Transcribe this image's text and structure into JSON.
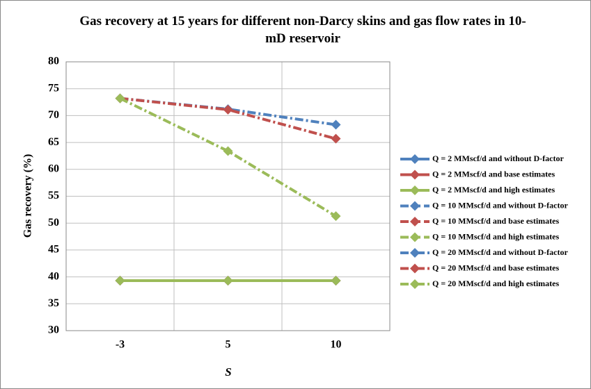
{
  "chart_data": {
    "type": "line",
    "title": "Gas recovery at 15 years for different non-Darcy skins and gas flow rates in 10-mD reservoir",
    "x_label": "S",
    "y_label": "Gas recovery (%)",
    "categories": [
      "-3",
      "5",
      "10"
    ],
    "ylim": [
      30,
      80
    ],
    "yticks": [
      30,
      35,
      40,
      45,
      50,
      55,
      60,
      65,
      70,
      75,
      80
    ],
    "grid": true,
    "legend": "right",
    "series": [
      {
        "name": "Q = 2 MMscf/d and without D-factor",
        "color": "#4f81bd",
        "dash": "solid",
        "values": [
          39.3,
          39.3,
          39.3
        ]
      },
      {
        "name": "Q = 2 MMscf/d and base estimates",
        "color": "#c0504d",
        "dash": "solid",
        "values": [
          39.3,
          39.3,
          39.3
        ]
      },
      {
        "name": "Q = 2 MMscf/d and high estimates",
        "color": "#9bbb59",
        "dash": "solid",
        "values": [
          39.3,
          39.3,
          39.3
        ]
      },
      {
        "name": "Q = 10 MMscf/d and without D-factor",
        "color": "#4f81bd",
        "dash": "dash",
        "values": [
          39.3,
          39.3,
          39.3
        ]
      },
      {
        "name": "Q = 10 MMscf/d and base estimates",
        "color": "#c0504d",
        "dash": "dash",
        "values": [
          39.3,
          39.3,
          39.3
        ]
      },
      {
        "name": "Q = 10 MMscf/d and high estimates",
        "color": "#9bbb59",
        "dash": "dash",
        "values": [
          39.3,
          39.3,
          39.3
        ]
      },
      {
        "name": "Q = 20 MMscf/d and without D-factor",
        "color": "#4f81bd",
        "dash": "dashdot",
        "values": [
          73.2,
          71.2,
          68.3
        ]
      },
      {
        "name": "Q = 20 MMscf/d and base estimates",
        "color": "#c0504d",
        "dash": "dashdot",
        "values": [
          73.2,
          71.1,
          65.7
        ]
      },
      {
        "name": "Q = 20 MMscf/d and high estimates",
        "color": "#9bbb59",
        "dash": "dashdot",
        "values": [
          73.2,
          63.4,
          51.3
        ]
      }
    ]
  }
}
